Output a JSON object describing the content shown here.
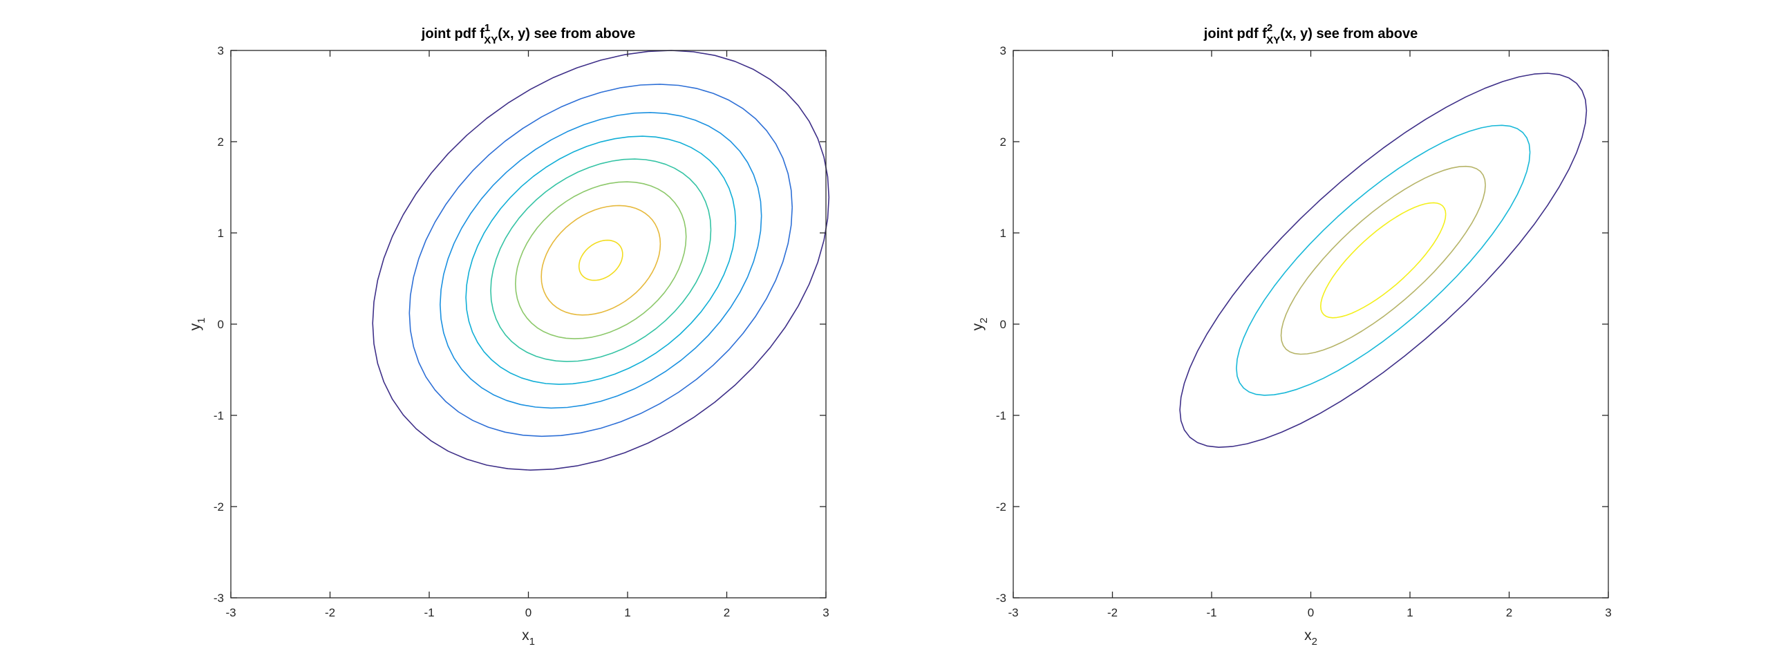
{
  "chart_data": [
    {
      "type": "contour",
      "title": {
        "prefix": "joint pdf f",
        "sup": "1",
        "sub": "XY",
        "suffix": "(x, y) see from above"
      },
      "xlabel": {
        "main": "x",
        "sub": "1"
      },
      "ylabel": {
        "main": "y",
        "sub": "1"
      },
      "xlim": [
        -3,
        3
      ],
      "ylim": [
        -3,
        3
      ],
      "xticks": [
        "-3",
        "-2",
        "-1",
        "0",
        "1",
        "2",
        "3"
      ],
      "yticks": [
        "-3",
        "-2",
        "-1",
        "0",
        "1",
        "2",
        "3"
      ],
      "grid": false,
      "distribution": {
        "mean": [
          0.73,
          0.7
        ],
        "covariance": [
          [
            1.0,
            0.3
          ],
          [
            0.3,
            1.0
          ]
        ]
      },
      "contours": [
        {
          "mahalanobis": 2.3,
          "color": "#3e2f88"
        },
        {
          "mahalanobis": 1.93,
          "color": "#2d6fd6"
        },
        {
          "mahalanobis": 1.62,
          "color": "#1a90e0"
        },
        {
          "mahalanobis": 1.36,
          "color": "#10aed6"
        },
        {
          "mahalanobis": 1.11,
          "color": "#34c3a4"
        },
        {
          "mahalanobis": 0.86,
          "color": "#8cc86a"
        },
        {
          "mahalanobis": 0.6,
          "color": "#e6b93c"
        },
        {
          "mahalanobis": 0.22,
          "color": "#f2dc1e"
        }
      ]
    },
    {
      "type": "contour",
      "title": {
        "prefix": "joint pdf f",
        "sup": "2",
        "sub": "XY",
        "suffix": "(x, y) see from above"
      },
      "xlabel": {
        "main": "x",
        "sub": "2"
      },
      "ylabel": {
        "main": "y",
        "sub": "2"
      },
      "xlim": [
        -3,
        3
      ],
      "ylim": [
        -3,
        3
      ],
      "xticks": [
        "-3",
        "-2",
        "-1",
        "0",
        "1",
        "2",
        "3"
      ],
      "yticks": [
        "-3",
        "-2",
        "-1",
        "0",
        "1",
        "2",
        "3"
      ],
      "grid": false,
      "distribution": {
        "mean": [
          0.73,
          0.7
        ],
        "covariance": [
          [
            1.0,
            0.8
          ],
          [
            0.8,
            1.0
          ]
        ]
      },
      "contours": [
        {
          "mahalanobis": 2.05,
          "color": "#3e2f88"
        },
        {
          "mahalanobis": 1.48,
          "color": "#18b8d8"
        },
        {
          "mahalanobis": 1.03,
          "color": "#b6b468"
        },
        {
          "mahalanobis": 0.63,
          "color": "#f3ef1c"
        }
      ]
    }
  ]
}
